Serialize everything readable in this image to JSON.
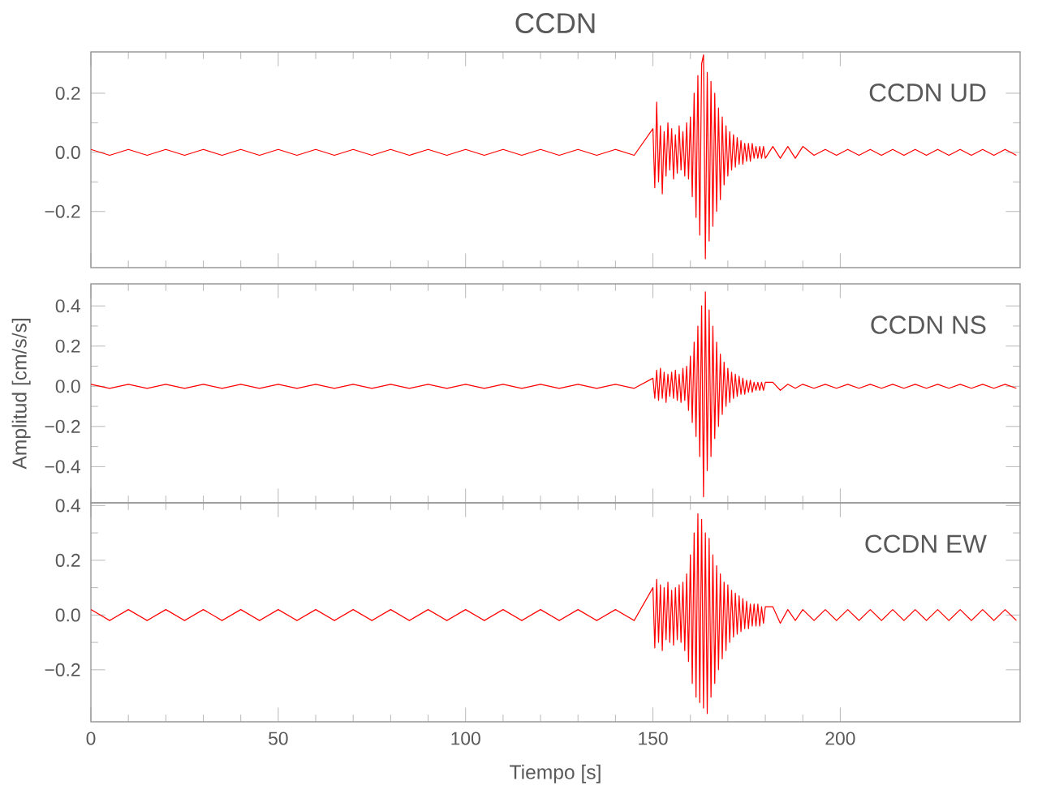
{
  "chart_data": [
    {
      "type": "line",
      "title": "CCDN",
      "annotations": [
        "CCDN   UD"
      ],
      "tick_labels": "y",
      "x": [
        0,
        5,
        10,
        15,
        20,
        25,
        30,
        35,
        40,
        45,
        50,
        55,
        60,
        65,
        70,
        75,
        80,
        85,
        90,
        95,
        100,
        105,
        110,
        115,
        120,
        125,
        130,
        135,
        140,
        145,
        150,
        150.5,
        151,
        151.5,
        152,
        152.5,
        153,
        153.5,
        154,
        154.5,
        155,
        155.5,
        156,
        156.5,
        157,
        157.5,
        158,
        158.5,
        159,
        159.5,
        160,
        160.5,
        161,
        161.5,
        162,
        162.5,
        163,
        163.5,
        164,
        164.5,
        165,
        165.5,
        166,
        166.5,
        167,
        167.5,
        168,
        168.5,
        169,
        169.5,
        170,
        170.5,
        171,
        171.5,
        172,
        172.5,
        173,
        173.5,
        174,
        174.5,
        175,
        175.5,
        176,
        176.5,
        177,
        177.5,
        178,
        178.5,
        179,
        179.5,
        180,
        182,
        184,
        186,
        188,
        190,
        193,
        196,
        199,
        202,
        205,
        208,
        211,
        214,
        217,
        220,
        223,
        226,
        229,
        232,
        235,
        238,
        241,
        244,
        247
      ],
      "series": [
        {
          "color": "#ff0000",
          "values": [
            0.01,
            -0.01,
            0.01,
            -0.01,
            0.01,
            -0.01,
            0.01,
            -0.01,
            0.01,
            -0.01,
            0.01,
            -0.01,
            0.01,
            -0.01,
            0.01,
            -0.01,
            0.01,
            -0.01,
            0.01,
            -0.01,
            0.01,
            -0.01,
            0.01,
            -0.01,
            0.01,
            -0.01,
            0.01,
            -0.01,
            0.01,
            -0.01,
            0.08,
            -0.12,
            0.17,
            -0.1,
            0.09,
            -0.14,
            0.07,
            -0.08,
            0.1,
            -0.06,
            0.08,
            -0.09,
            0.06,
            -0.07,
            0.09,
            -0.06,
            0.07,
            -0.08,
            0.1,
            -0.09,
            0.12,
            -0.15,
            0.2,
            -0.22,
            0.26,
            -0.28,
            0.3,
            0.33,
            -0.36,
            0.27,
            -0.3,
            0.24,
            -0.25,
            0.2,
            -0.2,
            0.15,
            -0.16,
            0.12,
            -0.11,
            0.09,
            -0.08,
            0.07,
            -0.06,
            0.06,
            -0.05,
            0.05,
            -0.04,
            0.04,
            -0.04,
            0.03,
            -0.03,
            0.03,
            -0.03,
            0.03,
            -0.02,
            0.02,
            -0.02,
            0.02,
            -0.02,
            0.02,
            -0.02,
            0.02,
            -0.02,
            0.02,
            -0.02,
            0.02,
            -0.01,
            0.01,
            -0.01,
            0.01,
            -0.01,
            0.01,
            -0.01,
            0.01,
            -0.01,
            0.01,
            -0.01,
            0.01,
            -0.01,
            0.01,
            -0.01,
            0.01,
            -0.01,
            0.01,
            -0.01
          ]
        }
      ],
      "xlim": [
        0,
        248
      ],
      "ylim": [
        -0.39,
        0.34
      ],
      "yticks": [
        {
          "value": -0.2,
          "label": "−0.2"
        },
        {
          "value": 0,
          "label": "0.0"
        },
        {
          "value": 0.2,
          "label": "0.2"
        }
      ]
    },
    {
      "type": "line",
      "ylabel": "Amplitud  [cm/s/s]",
      "annotations": [
        "CCDN   NS"
      ],
      "tick_labels": "y",
      "x": [
        0,
        5,
        10,
        15,
        20,
        25,
        30,
        35,
        40,
        45,
        50,
        55,
        60,
        65,
        70,
        75,
        80,
        85,
        90,
        95,
        100,
        105,
        110,
        115,
        120,
        125,
        130,
        135,
        140,
        145,
        150,
        150.5,
        151,
        151.5,
        152,
        152.5,
        153,
        153.5,
        154,
        154.5,
        155,
        155.5,
        156,
        156.5,
        157,
        157.5,
        158,
        158.5,
        159,
        159.5,
        160,
        160.5,
        161,
        161.5,
        162,
        162.5,
        163,
        163.5,
        164,
        164.5,
        165,
        165.5,
        166,
        166.5,
        167,
        167.5,
        168,
        168.5,
        169,
        169.5,
        170,
        170.5,
        171,
        171.5,
        172,
        172.5,
        173,
        173.5,
        174,
        174.5,
        175,
        175.5,
        176,
        176.5,
        177,
        177.5,
        178,
        178.5,
        179,
        179.5,
        180,
        182,
        184,
        186,
        188,
        190,
        193,
        196,
        199,
        202,
        205,
        208,
        211,
        214,
        217,
        220,
        223,
        226,
        229,
        232,
        235,
        238,
        241,
        244,
        247
      ],
      "series": [
        {
          "color": "#ff0000",
          "values": [
            0.01,
            -0.01,
            0.01,
            -0.01,
            0.01,
            -0.01,
            0.01,
            -0.01,
            0.01,
            -0.01,
            0.01,
            -0.01,
            0.01,
            -0.01,
            0.01,
            -0.01,
            0.01,
            -0.01,
            0.01,
            -0.01,
            0.01,
            -0.01,
            0.01,
            -0.01,
            0.01,
            -0.01,
            0.01,
            -0.01,
            0.01,
            -0.01,
            0.04,
            -0.06,
            0.08,
            -0.07,
            0.09,
            -0.06,
            0.07,
            -0.08,
            0.06,
            -0.05,
            0.07,
            -0.06,
            0.08,
            -0.07,
            0.06,
            -0.08,
            0.09,
            -0.07,
            0.1,
            -0.12,
            0.15,
            -0.18,
            0.22,
            -0.25,
            0.3,
            -0.35,
            0.4,
            -0.55,
            0.47,
            -0.42,
            0.38,
            -0.35,
            0.3,
            -0.26,
            0.22,
            -0.2,
            0.16,
            -0.14,
            0.12,
            -0.1,
            0.09,
            -0.08,
            0.07,
            -0.06,
            0.06,
            -0.05,
            0.05,
            -0.04,
            0.04,
            -0.04,
            0.03,
            -0.03,
            0.03,
            -0.03,
            0.02,
            -0.02,
            0.02,
            -0.02,
            0.02,
            -0.02,
            0.02,
            0.02,
            -0.02,
            0.01,
            -0.01,
            0.01,
            -0.01,
            0.01,
            -0.01,
            0.01,
            -0.01,
            0.01,
            -0.01,
            0.01,
            -0.01,
            0.01,
            -0.01,
            0.01,
            -0.01,
            0.01,
            -0.01,
            0.01,
            -0.01,
            0.01,
            -0.01
          ]
        }
      ],
      "xlim": [
        0,
        248
      ],
      "ylim": [
        -0.58,
        0.51
      ],
      "yticks": [
        {
          "value": -0.4,
          "label": "−0.4"
        },
        {
          "value": -0.2,
          "label": "−0.2"
        },
        {
          "value": 0,
          "label": "0.0"
        },
        {
          "value": 0.2,
          "label": "0.2"
        },
        {
          "value": 0.4,
          "label": "0.4"
        }
      ]
    },
    {
      "type": "line",
      "xlabel": "Tiempo  [s]",
      "annotations": [
        "CCDN   EW"
      ],
      "x": [
        0,
        5,
        10,
        15,
        20,
        25,
        30,
        35,
        40,
        45,
        50,
        55,
        60,
        65,
        70,
        75,
        80,
        85,
        90,
        95,
        100,
        105,
        110,
        115,
        120,
        125,
        130,
        135,
        140,
        145,
        150,
        150.5,
        151,
        151.5,
        152,
        152.5,
        153,
        153.5,
        154,
        154.5,
        155,
        155.5,
        156,
        156.5,
        157,
        157.5,
        158,
        158.5,
        159,
        159.5,
        160,
        160.5,
        161,
        161.5,
        162,
        162.5,
        163,
        163.5,
        164,
        164.5,
        165,
        165.5,
        166,
        166.5,
        167,
        167.5,
        168,
        168.5,
        169,
        169.5,
        170,
        170.5,
        171,
        171.5,
        172,
        172.5,
        173,
        173.5,
        174,
        174.5,
        175,
        175.5,
        176,
        176.5,
        177,
        177.5,
        178,
        178.5,
        179,
        179.5,
        180,
        182,
        184,
        186,
        188,
        190,
        193,
        196,
        199,
        202,
        205,
        208,
        211,
        214,
        217,
        220,
        223,
        226,
        229,
        232,
        235,
        238,
        241,
        244,
        247
      ],
      "series": [
        {
          "color": "#ff0000",
          "values": [
            0.02,
            -0.02,
            0.02,
            -0.02,
            0.02,
            -0.02,
            0.02,
            -0.02,
            0.02,
            -0.02,
            0.02,
            -0.02,
            0.02,
            -0.02,
            0.02,
            -0.02,
            0.02,
            -0.02,
            0.02,
            -0.02,
            0.02,
            -0.02,
            0.02,
            -0.02,
            0.02,
            -0.02,
            0.02,
            -0.02,
            0.02,
            -0.02,
            0.1,
            -0.12,
            0.13,
            -0.1,
            0.11,
            -0.13,
            0.1,
            -0.09,
            0.12,
            -0.1,
            0.09,
            -0.11,
            0.1,
            -0.09,
            0.11,
            -0.1,
            0.12,
            -0.13,
            0.15,
            -0.17,
            0.22,
            -0.25,
            0.3,
            -0.3,
            0.37,
            -0.32,
            0.35,
            -0.34,
            0.3,
            -0.36,
            0.28,
            -0.3,
            0.22,
            -0.25,
            0.18,
            -0.2,
            0.15,
            -0.16,
            0.12,
            -0.13,
            0.11,
            -0.1,
            0.09,
            -0.08,
            0.08,
            -0.07,
            0.07,
            -0.06,
            0.06,
            -0.05,
            0.05,
            -0.05,
            0.04,
            -0.04,
            0.04,
            -0.04,
            0.04,
            -0.04,
            0.03,
            -0.03,
            0.03,
            0.03,
            -0.03,
            0.02,
            -0.02,
            0.02,
            -0.02,
            0.02,
            -0.02,
            0.02,
            -0.02,
            0.02,
            -0.02,
            0.02,
            -0.02,
            0.02,
            -0.02,
            0.02,
            -0.02,
            0.02,
            -0.02,
            0.02,
            -0.02,
            0.02,
            -0.02
          ]
        }
      ],
      "xlim": [
        0,
        248
      ],
      "ylim": [
        -0.39,
        0.41
      ],
      "xticks": [
        0,
        50,
        100,
        150,
        200
      ],
      "yticks": [
        {
          "value": -0.2,
          "label": "−0.2"
        },
        {
          "value": 0,
          "label": "0.0"
        },
        {
          "value": 0.2,
          "label": "0.2"
        },
        {
          "value": 0.4,
          "label": "0.4"
        }
      ]
    }
  ]
}
